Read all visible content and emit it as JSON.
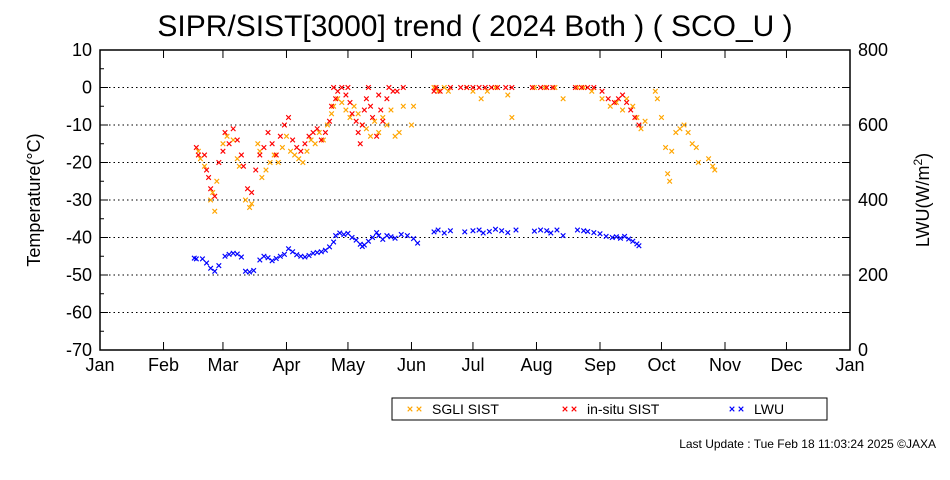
{
  "chart_data": {
    "type": "scatter",
    "title": "SIPR/SIST[3000] trend ( 2024 Both ) ( SCO_U )",
    "ylabel": "Temperature(°C)",
    "y2label_base": "LWU(W/m",
    "y2label_sup": "2",
    "y2label_end": ")",
    "ylim": [
      -70,
      10
    ],
    "y2lim": [
      0,
      800
    ],
    "yticks": [
      "10",
      "0",
      "-10",
      "-20",
      "-30",
      "-40",
      "-50",
      "-60",
      "-70"
    ],
    "y2ticks": [
      "800",
      "600",
      "400",
      "200",
      "0"
    ],
    "xticks": [
      "Jan",
      "Feb",
      "Mar",
      "Apr",
      "May",
      "Jun",
      "Jul",
      "Aug",
      "Sep",
      "Oct",
      "Nov",
      "Dec",
      "Jan"
    ],
    "grid": "horizontal dotted",
    "legend_position": "bottom-right",
    "marker": "x",
    "series": [
      {
        "name": "SGLI SIST",
        "axis": "left",
        "color": "#ffa500",
        "points": [
          [
            "2024-02-18",
            -17
          ],
          [
            "2024-02-19",
            -19
          ],
          [
            "2024-02-21",
            -21
          ],
          [
            "2024-02-24",
            -30
          ],
          [
            "2024-02-25",
            -28
          ],
          [
            "2024-02-26",
            -33
          ],
          [
            "2024-02-27",
            -25
          ],
          [
            "2024-03-01",
            -15
          ],
          [
            "2024-03-03",
            -13
          ],
          [
            "2024-03-06",
            -14
          ],
          [
            "2024-03-08",
            -19
          ],
          [
            "2024-03-09",
            -21
          ],
          [
            "2024-03-12",
            -30
          ],
          [
            "2024-03-14",
            -32
          ],
          [
            "2024-03-15",
            -31
          ],
          [
            "2024-03-18",
            -15
          ],
          [
            "2024-03-19",
            -17
          ],
          [
            "2024-03-20",
            -24
          ],
          [
            "2024-03-22",
            -22
          ],
          [
            "2024-03-24",
            -20
          ],
          [
            "2024-03-26",
            -18
          ],
          [
            "2024-03-28",
            -20
          ],
          [
            "2024-03-30",
            -16
          ],
          [
            "2024-04-01",
            -13
          ],
          [
            "2024-04-03",
            -17
          ],
          [
            "2024-04-05",
            -18
          ],
          [
            "2024-04-07",
            -19
          ],
          [
            "2024-04-09",
            -20
          ],
          [
            "2024-04-11",
            -17
          ],
          [
            "2024-04-13",
            -14
          ],
          [
            "2024-04-15",
            -15
          ],
          [
            "2024-04-17",
            -12
          ],
          [
            "2024-04-19",
            -14
          ],
          [
            "2024-04-21",
            -10
          ],
          [
            "2024-04-23",
            -7
          ],
          [
            "2024-04-24",
            -5
          ],
          [
            "2024-04-26",
            -3
          ],
          [
            "2024-04-28",
            -4
          ],
          [
            "2024-04-30",
            -6
          ],
          [
            "2024-05-02",
            -8
          ],
          [
            "2024-05-04",
            -5
          ],
          [
            "2024-05-06",
            -7
          ],
          [
            "2024-05-08",
            -10
          ],
          [
            "2024-05-10",
            -11
          ],
          [
            "2024-05-12",
            -13
          ],
          [
            "2024-05-14",
            -9
          ],
          [
            "2024-05-16",
            -12
          ],
          [
            "2024-05-18",
            -8
          ],
          [
            "2024-05-20",
            -10
          ],
          [
            "2024-05-22",
            -6
          ],
          [
            "2024-05-24",
            -13
          ],
          [
            "2024-05-26",
            -12
          ],
          [
            "2024-05-28",
            -5
          ],
          [
            "2024-06-01",
            -10
          ],
          [
            "2024-06-02",
            -5
          ],
          [
            "2024-06-12",
            0
          ],
          [
            "2024-06-14",
            -1
          ],
          [
            "2024-06-17",
            0
          ],
          [
            "2024-06-19",
            -1
          ],
          [
            "2024-06-28",
            0
          ],
          [
            "2024-07-01",
            -1
          ],
          [
            "2024-07-05",
            -3
          ],
          [
            "2024-07-08",
            -1
          ],
          [
            "2024-07-12",
            0
          ],
          [
            "2024-07-18",
            -2
          ],
          [
            "2024-07-20",
            -8
          ],
          [
            "2024-07-31",
            0
          ],
          [
            "2024-08-05",
            0
          ],
          [
            "2024-08-10",
            0
          ],
          [
            "2024-08-14",
            -3
          ],
          [
            "2024-08-21",
            0
          ],
          [
            "2024-08-24",
            0
          ],
          [
            "2024-08-28",
            -1
          ],
          [
            "2024-09-02",
            -3
          ],
          [
            "2024-09-06",
            -5
          ],
          [
            "2024-09-09",
            -4
          ],
          [
            "2024-09-12",
            -6
          ],
          [
            "2024-09-14",
            -3
          ],
          [
            "2024-09-17",
            -5
          ],
          [
            "2024-09-19",
            -8
          ],
          [
            "2024-09-21",
            -11
          ],
          [
            "2024-09-23",
            -9
          ],
          [
            "2024-09-28",
            -1
          ],
          [
            "2024-09-29",
            -3
          ],
          [
            "2024-10-01",
            -8
          ],
          [
            "2024-10-03",
            -16
          ],
          [
            "2024-10-04",
            -23
          ],
          [
            "2024-10-05",
            -25
          ],
          [
            "2024-10-06",
            -17
          ],
          [
            "2024-10-08",
            -12
          ],
          [
            "2024-10-10",
            -11
          ],
          [
            "2024-10-12",
            -10
          ],
          [
            "2024-10-14",
            -12
          ],
          [
            "2024-10-16",
            -15
          ],
          [
            "2024-10-18",
            -16
          ],
          [
            "2024-10-19",
            -20
          ],
          [
            "2024-10-24",
            -19
          ],
          [
            "2024-10-26",
            -21
          ],
          [
            "2024-10-27",
            -22
          ]
        ]
      },
      {
        "name": "in-situ SIST",
        "axis": "left",
        "color": "#ff0000",
        "points": [
          [
            "2024-02-17",
            -16
          ],
          [
            "2024-02-18",
            -18
          ],
          [
            "2024-02-21",
            -18
          ],
          [
            "2024-02-22",
            -22
          ],
          [
            "2024-02-23",
            -24
          ],
          [
            "2024-02-24",
            -27
          ],
          [
            "2024-02-26",
            -29
          ],
          [
            "2024-02-28",
            -20
          ],
          [
            "2024-03-01",
            -17
          ],
          [
            "2024-03-02",
            -12
          ],
          [
            "2024-03-04",
            -15
          ],
          [
            "2024-03-06",
            -11
          ],
          [
            "2024-03-08",
            -14
          ],
          [
            "2024-03-10",
            -18
          ],
          [
            "2024-03-11",
            -21
          ],
          [
            "2024-03-13",
            -27
          ],
          [
            "2024-03-15",
            -28
          ],
          [
            "2024-03-17",
            -22
          ],
          [
            "2024-03-19",
            -18
          ],
          [
            "2024-03-21",
            -16
          ],
          [
            "2024-03-23",
            -12
          ],
          [
            "2024-03-25",
            -15
          ],
          [
            "2024-03-27",
            -18
          ],
          [
            "2024-03-29",
            -13
          ],
          [
            "2024-03-31",
            -10
          ],
          [
            "2024-04-02",
            -8
          ],
          [
            "2024-04-04",
            -14
          ],
          [
            "2024-04-06",
            -16
          ],
          [
            "2024-04-08",
            -17
          ],
          [
            "2024-04-10",
            -15
          ],
          [
            "2024-04-12",
            -13
          ],
          [
            "2024-04-14",
            -12
          ],
          [
            "2024-04-16",
            -11
          ],
          [
            "2024-04-18",
            -14
          ],
          [
            "2024-04-20",
            -12
          ],
          [
            "2024-04-22",
            -9
          ],
          [
            "2024-04-23",
            -5
          ],
          [
            "2024-04-24",
            0
          ],
          [
            "2024-04-25",
            -3
          ],
          [
            "2024-04-26",
            -1
          ],
          [
            "2024-04-28",
            0
          ],
          [
            "2024-04-30",
            -2
          ],
          [
            "2024-05-01",
            0
          ],
          [
            "2024-05-02",
            -4
          ],
          [
            "2024-05-03",
            -7
          ],
          [
            "2024-05-05",
            -9
          ],
          [
            "2024-05-06",
            -12
          ],
          [
            "2024-05-07",
            -15
          ],
          [
            "2024-05-08",
            -10
          ],
          [
            "2024-05-09",
            -6
          ],
          [
            "2024-05-10",
            -3
          ],
          [
            "2024-05-11",
            0
          ],
          [
            "2024-05-12",
            -5
          ],
          [
            "2024-05-13",
            -8
          ],
          [
            "2024-05-15",
            -13
          ],
          [
            "2024-05-16",
            -2
          ],
          [
            "2024-05-17",
            -6
          ],
          [
            "2024-05-18",
            -9
          ],
          [
            "2024-05-20",
            -3
          ],
          [
            "2024-05-21",
            0
          ],
          [
            "2024-05-23",
            -1
          ],
          [
            "2024-05-25",
            -1
          ],
          [
            "2024-05-28",
            0
          ],
          [
            "2024-06-12",
            -1
          ],
          [
            "2024-06-13",
            0
          ],
          [
            "2024-06-15",
            -1
          ],
          [
            "2024-06-20",
            0
          ],
          [
            "2024-06-25",
            0
          ],
          [
            "2024-06-28",
            0
          ],
          [
            "2024-07-01",
            0
          ],
          [
            "2024-07-04",
            0
          ],
          [
            "2024-07-07",
            0
          ],
          [
            "2024-07-10",
            0
          ],
          [
            "2024-07-13",
            0
          ],
          [
            "2024-07-17",
            0
          ],
          [
            "2024-07-20",
            0
          ],
          [
            "2024-07-30",
            0
          ],
          [
            "2024-08-03",
            0
          ],
          [
            "2024-08-06",
            0
          ],
          [
            "2024-08-09",
            0
          ],
          [
            "2024-08-20",
            0
          ],
          [
            "2024-08-23",
            0
          ],
          [
            "2024-08-26",
            0
          ],
          [
            "2024-08-29",
            0
          ],
          [
            "2024-09-02",
            -1
          ],
          [
            "2024-09-05",
            -3
          ],
          [
            "2024-09-08",
            -4
          ],
          [
            "2024-09-10",
            -3
          ],
          [
            "2024-09-12",
            -2
          ],
          [
            "2024-09-14",
            -4
          ],
          [
            "2024-09-16",
            -6
          ],
          [
            "2024-09-18",
            -8
          ],
          [
            "2024-09-20",
            -10
          ]
        ]
      },
      {
        "name": "LWU",
        "axis": "right",
        "color": "#0000ff",
        "points": [
          [
            "2024-02-16",
            245
          ],
          [
            "2024-02-17",
            243
          ],
          [
            "2024-02-20",
            243
          ],
          [
            "2024-02-22",
            232
          ],
          [
            "2024-02-24",
            218
          ],
          [
            "2024-02-26",
            210
          ],
          [
            "2024-02-28",
            225
          ],
          [
            "2024-03-02",
            250
          ],
          [
            "2024-03-04",
            255
          ],
          [
            "2024-03-06",
            258
          ],
          [
            "2024-03-08",
            256
          ],
          [
            "2024-03-10",
            248
          ],
          [
            "2024-03-12",
            210
          ],
          [
            "2024-03-14",
            208
          ],
          [
            "2024-03-16",
            212
          ],
          [
            "2024-03-19",
            240
          ],
          [
            "2024-03-21",
            250
          ],
          [
            "2024-03-23",
            246
          ],
          [
            "2024-03-25",
            238
          ],
          [
            "2024-03-27",
            244
          ],
          [
            "2024-03-29",
            250
          ],
          [
            "2024-03-31",
            255
          ],
          [
            "2024-04-02",
            270
          ],
          [
            "2024-04-04",
            262
          ],
          [
            "2024-04-06",
            254
          ],
          [
            "2024-04-08",
            250
          ],
          [
            "2024-04-10",
            248
          ],
          [
            "2024-04-12",
            252
          ],
          [
            "2024-04-14",
            258
          ],
          [
            "2024-04-16",
            260
          ],
          [
            "2024-04-18",
            262
          ],
          [
            "2024-04-20",
            266
          ],
          [
            "2024-04-22",
            275
          ],
          [
            "2024-04-24",
            288
          ],
          [
            "2024-04-25",
            305
          ],
          [
            "2024-04-27",
            312
          ],
          [
            "2024-04-29",
            308
          ],
          [
            "2024-05-01",
            311
          ],
          [
            "2024-05-03",
            300
          ],
          [
            "2024-05-05",
            293
          ],
          [
            "2024-05-07",
            282
          ],
          [
            "2024-05-08",
            276
          ],
          [
            "2024-05-09",
            280
          ],
          [
            "2024-05-11",
            290
          ],
          [
            "2024-05-13",
            300
          ],
          [
            "2024-05-15",
            313
          ],
          [
            "2024-05-16",
            305
          ],
          [
            "2024-05-18",
            295
          ],
          [
            "2024-05-20",
            305
          ],
          [
            "2024-05-22",
            302
          ],
          [
            "2024-05-24",
            298
          ],
          [
            "2024-05-27",
            308
          ],
          [
            "2024-05-30",
            305
          ],
          [
            "2024-06-02",
            297
          ],
          [
            "2024-06-04",
            285
          ],
          [
            "2024-06-12",
            315
          ],
          [
            "2024-06-14",
            320
          ],
          [
            "2024-06-17",
            312
          ],
          [
            "2024-06-20",
            318
          ],
          [
            "2024-06-27",
            315
          ],
          [
            "2024-07-01",
            318
          ],
          [
            "2024-07-04",
            320
          ],
          [
            "2024-07-06",
            312
          ],
          [
            "2024-07-09",
            316
          ],
          [
            "2024-07-12",
            322
          ],
          [
            "2024-07-15",
            318
          ],
          [
            "2024-07-18",
            313
          ],
          [
            "2024-07-22",
            320
          ],
          [
            "2024-07-31",
            317
          ],
          [
            "2024-08-03",
            320
          ],
          [
            "2024-08-06",
            318
          ],
          [
            "2024-08-08",
            312
          ],
          [
            "2024-08-11",
            320
          ],
          [
            "2024-08-14",
            305
          ],
          [
            "2024-08-21",
            320
          ],
          [
            "2024-08-24",
            318
          ],
          [
            "2024-08-26",
            316
          ],
          [
            "2024-08-29",
            313
          ],
          [
            "2024-09-01",
            310
          ],
          [
            "2024-09-04",
            303
          ],
          [
            "2024-09-07",
            300
          ],
          [
            "2024-09-09",
            302
          ],
          [
            "2024-09-11",
            298
          ],
          [
            "2024-09-13",
            303
          ],
          [
            "2024-09-15",
            296
          ],
          [
            "2024-09-17",
            290
          ],
          [
            "2024-09-19",
            283
          ],
          [
            "2024-09-20",
            278
          ]
        ]
      }
    ]
  },
  "footer": {
    "text": "Last Update : Tue Feb 18 11:03:24 2025  ©JAXA"
  }
}
